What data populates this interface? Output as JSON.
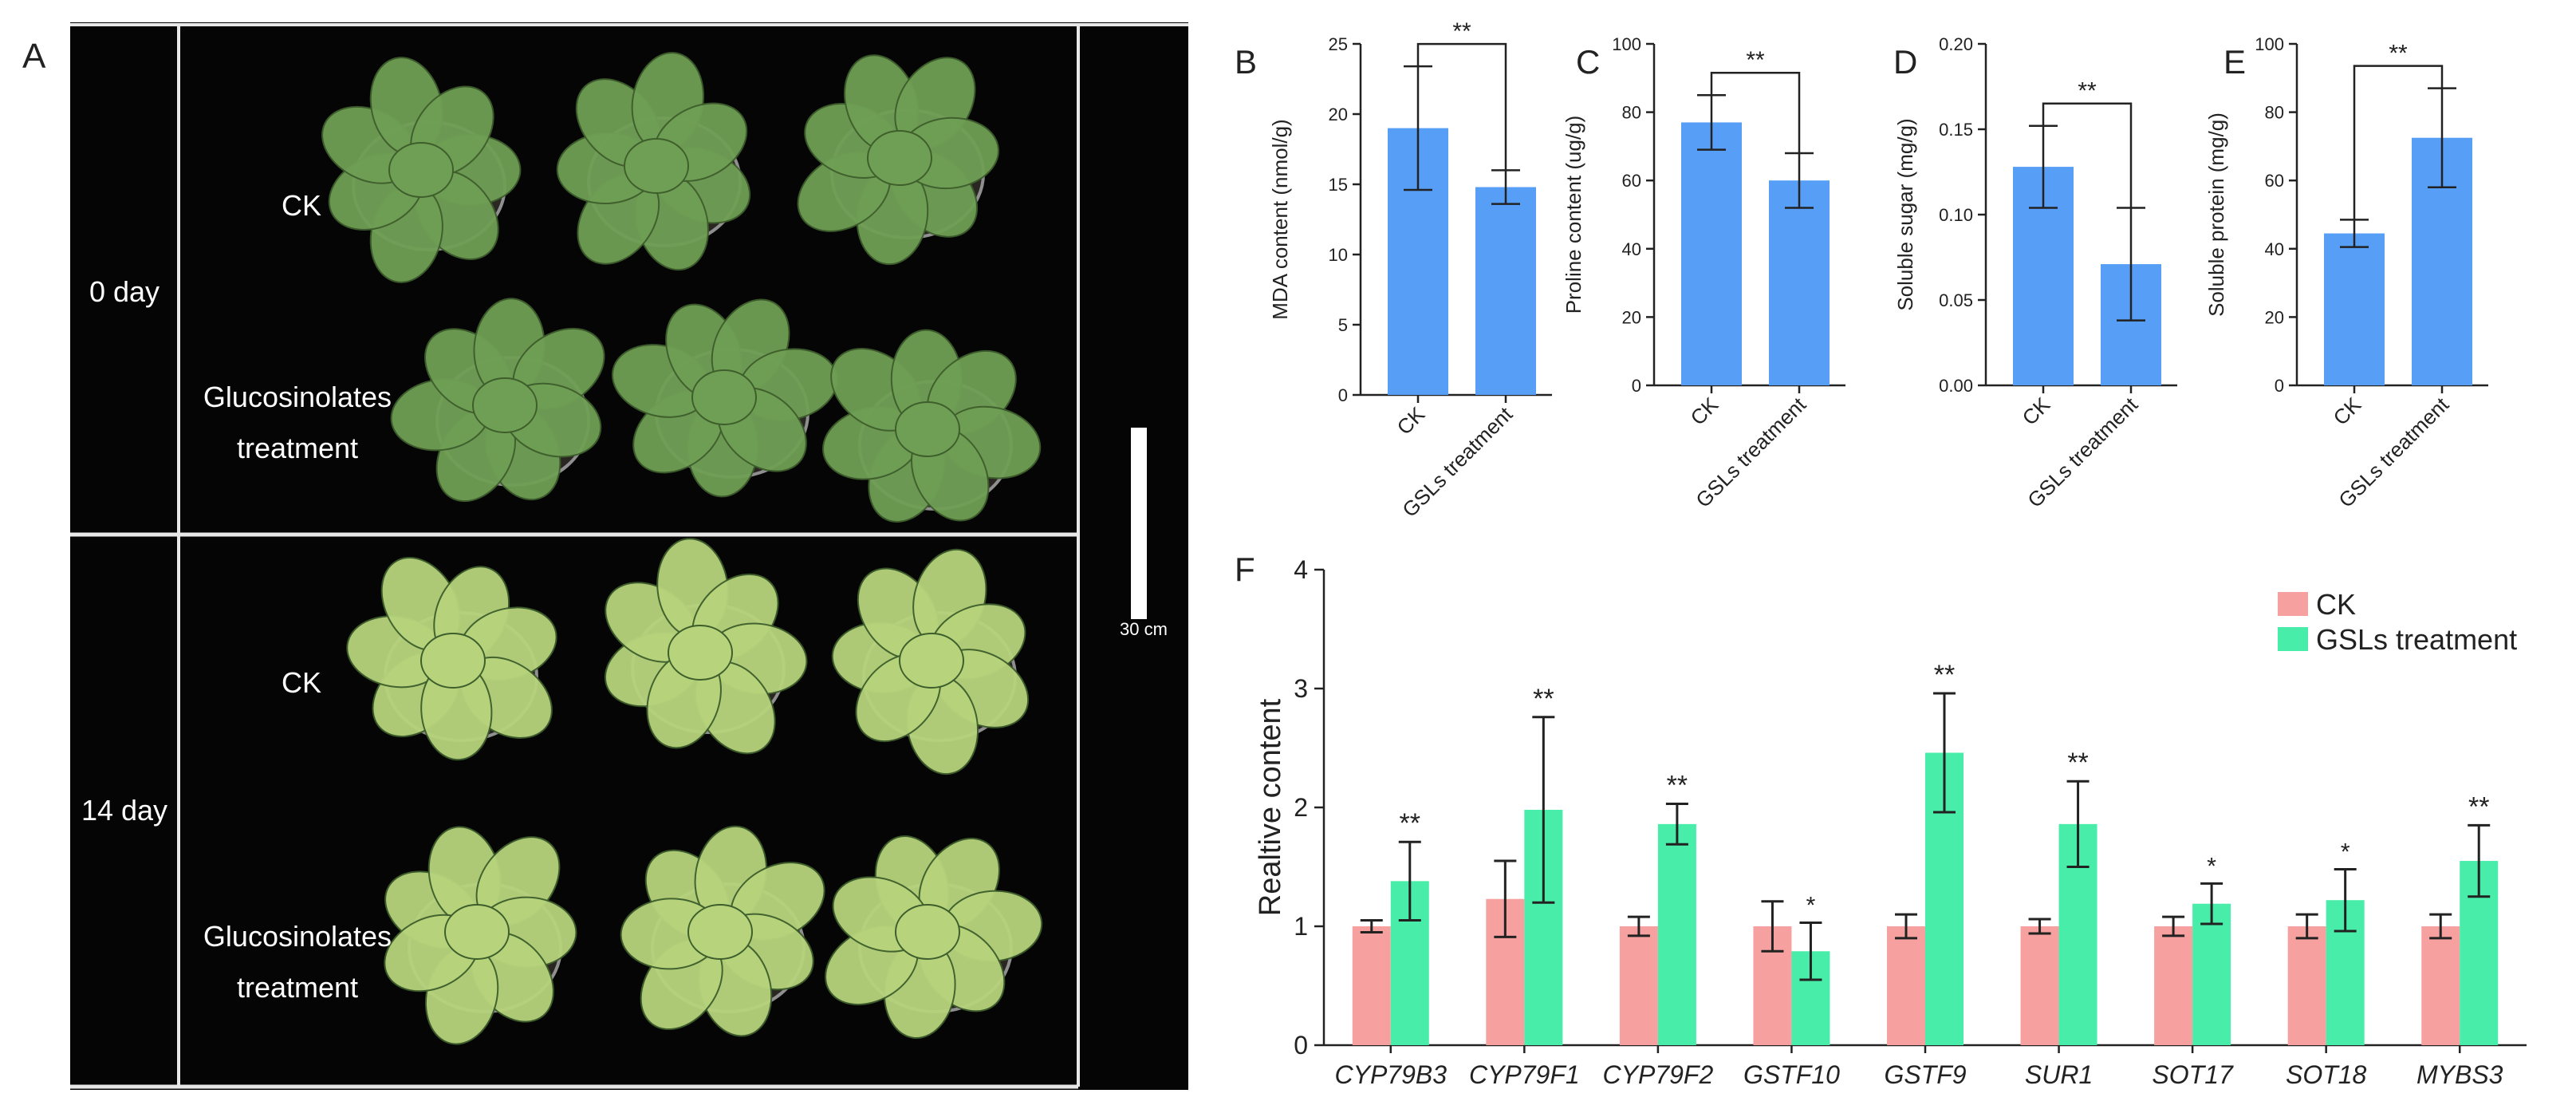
{
  "photo_panel": {
    "letter": "A",
    "rows": [
      {
        "label": "0 day",
        "groups": [
          "CK",
          "Glucosinolates\ntreatment"
        ]
      },
      {
        "label": "14 day",
        "groups": [
          "CK",
          "Glucosinolates\ntreatment"
        ]
      }
    ],
    "scale_bar_label": "30 cm",
    "colors": {
      "background": "#050505",
      "plant_0day": "#6f9f55",
      "plant_14day": "#b7d47c",
      "frame": "#e8e8e8"
    }
  },
  "chart_data": [
    {
      "panel": "B",
      "type": "bar",
      "categories": [
        "CK",
        "GSLs treatment"
      ],
      "values": [
        19.0,
        14.8
      ],
      "errors": [
        4.4,
        1.2
      ],
      "ylabel": "MDA content (nmol/g)",
      "ylim": [
        0,
        25
      ],
      "yticks": [
        0,
        5,
        10,
        15,
        20,
        25
      ],
      "significance": "**",
      "color": "#579ef7"
    },
    {
      "panel": "C",
      "type": "bar",
      "categories": [
        "CK",
        "GSLs treatment"
      ],
      "values": [
        77,
        60
      ],
      "errors": [
        8,
        8
      ],
      "ylabel": "Proline content (ug/g)",
      "ylim": [
        0,
        100
      ],
      "yticks": [
        0,
        20,
        40,
        60,
        80,
        100
      ],
      "significance": "**",
      "color": "#579ef7"
    },
    {
      "panel": "D",
      "type": "bar",
      "categories": [
        "CK",
        "GSLs treatment"
      ],
      "values": [
        0.128,
        0.071
      ],
      "errors": [
        0.024,
        0.033
      ],
      "ylabel": "Soluble sugar (mg/g)",
      "ylim": [
        0,
        0.2
      ],
      "yticks": [
        "0.00",
        "0.05",
        "0.10",
        "0.15",
        "0.20"
      ],
      "significance": "**",
      "color": "#579ef7"
    },
    {
      "panel": "E",
      "type": "bar",
      "categories": [
        "CK",
        "GSLs treatment"
      ],
      "values": [
        44.5,
        72.5
      ],
      "errors": [
        4,
        14.5
      ],
      "ylabel": "Soluble protein (mg/g)",
      "ylim": [
        0,
        100
      ],
      "yticks": [
        0,
        20,
        40,
        60,
        80,
        100
      ],
      "significance": "**",
      "color": "#579ef7"
    },
    {
      "panel": "F",
      "type": "bar",
      "categories": [
        "CYP79B3",
        "CYP79F1",
        "CYP79F2",
        "GSTF10",
        "GSTF9",
        "SUR1",
        "SOT17",
        "SOT18",
        "MYBS3"
      ],
      "series": [
        {
          "name": "CK",
          "color": "#f6a1a0",
          "values": [
            1.0,
            1.23,
            1.0,
            1.0,
            1.0,
            1.0,
            1.0,
            1.0,
            1.0
          ],
          "errors": [
            0.05,
            0.32,
            0.08,
            0.21,
            0.1,
            0.06,
            0.08,
            0.1,
            0.1
          ]
        },
        {
          "name": "GSLs treatment",
          "color": "#47eda9",
          "values": [
            1.38,
            1.98,
            1.86,
            0.79,
            2.46,
            1.86,
            1.19,
            1.22,
            1.55
          ],
          "errors": [
            0.33,
            0.78,
            0.17,
            0.24,
            0.5,
            0.36,
            0.17,
            0.26,
            0.3
          ]
        }
      ],
      "significance": [
        "**",
        "**",
        "**",
        "*",
        "**",
        "**",
        "*",
        "*",
        "**"
      ],
      "ylabel": "Realtive content",
      "ylim": [
        0,
        4
      ],
      "yticks": [
        0,
        1,
        2,
        3,
        4
      ],
      "legend_position": "top-right"
    }
  ]
}
